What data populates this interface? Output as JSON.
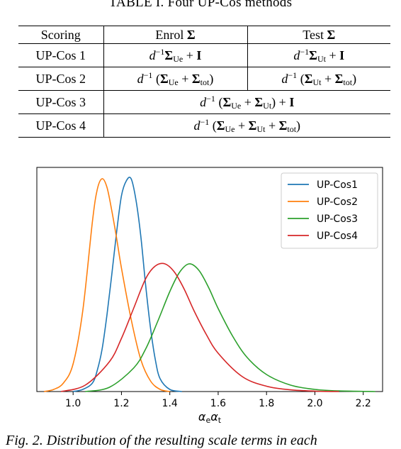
{
  "table_caption": "TABLE I. Four UP-Cos methods",
  "table": {
    "headers": {
      "scoring": "Scoring",
      "enrol": "Enrol",
      "test": "Test"
    },
    "rows": [
      {
        "name": "UP-Cos 1"
      },
      {
        "name": "UP-Cos 2"
      },
      {
        "name": "UP-Cos 3"
      },
      {
        "name": "UP-Cos 4"
      }
    ]
  },
  "chart_data": {
    "type": "line",
    "xlabel": "αeαt",
    "ylabel": "",
    "xlim": [
      0.85,
      2.28
    ],
    "xticks": [
      "1.0",
      "1.2",
      "1.4",
      "1.6",
      "1.8",
      "2.0",
      "2.2"
    ],
    "xtick_values": [
      1.0,
      1.2,
      1.4,
      1.6,
      1.8,
      2.0,
      2.2
    ],
    "grid": false,
    "legend_position": "top-right",
    "series": [
      {
        "name": "UP-Cos1",
        "color": "#1f77b4",
        "x": [
          1.0,
          1.04,
          1.08,
          1.1,
          1.12,
          1.14,
          1.16,
          1.18,
          1.2,
          1.22,
          1.24,
          1.26,
          1.28,
          1.3,
          1.32,
          1.34,
          1.36,
          1.4,
          1.45
        ],
        "y": [
          0.0,
          0.01,
          0.04,
          0.1,
          0.2,
          0.36,
          0.55,
          0.75,
          0.92,
          0.99,
          1.0,
          0.9,
          0.73,
          0.5,
          0.3,
          0.15,
          0.06,
          0.01,
          0.0
        ]
      },
      {
        "name": "UP-Cos2",
        "color": "#ff7f0e",
        "x": [
          0.88,
          0.92,
          0.96,
          1.0,
          1.04,
          1.08,
          1.1,
          1.12,
          1.14,
          1.16,
          1.18,
          1.2,
          1.24,
          1.28,
          1.32,
          1.36,
          1.4
        ],
        "y": [
          0.0,
          0.01,
          0.04,
          0.13,
          0.38,
          0.8,
          0.95,
          1.0,
          0.96,
          0.85,
          0.72,
          0.58,
          0.34,
          0.15,
          0.05,
          0.01,
          0.0
        ]
      },
      {
        "name": "UP-Cos3",
        "color": "#2ca02c",
        "x": [
          1.05,
          1.15,
          1.25,
          1.3,
          1.35,
          1.4,
          1.44,
          1.48,
          1.52,
          1.56,
          1.6,
          1.66,
          1.72,
          1.8,
          1.9,
          2.0,
          2.1,
          2.25
        ],
        "y": [
          0.0,
          0.02,
          0.11,
          0.2,
          0.33,
          0.47,
          0.56,
          0.6,
          0.57,
          0.49,
          0.39,
          0.26,
          0.16,
          0.08,
          0.03,
          0.01,
          0.003,
          0.0
        ]
      },
      {
        "name": "UP-Cos4",
        "color": "#d62728",
        "x": [
          0.95,
          1.05,
          1.15,
          1.2,
          1.25,
          1.3,
          1.34,
          1.38,
          1.42,
          1.46,
          1.5,
          1.55,
          1.6,
          1.7,
          1.8,
          1.9,
          2.0,
          2.1
        ],
        "y": [
          0.0,
          0.03,
          0.14,
          0.25,
          0.39,
          0.53,
          0.59,
          0.6,
          0.56,
          0.48,
          0.38,
          0.27,
          0.18,
          0.07,
          0.025,
          0.008,
          0.002,
          0.0
        ]
      }
    ]
  },
  "figure_caption": "Fig. 2. Distribution of the resulting scale terms in each"
}
